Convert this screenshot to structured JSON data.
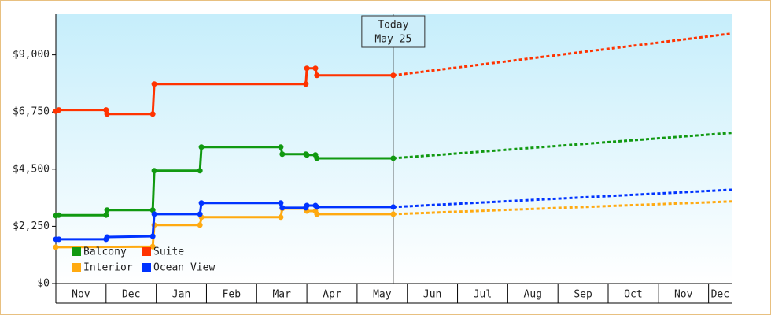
{
  "chart_data": {
    "type": "line",
    "xlim": [
      0,
      13.46
    ],
    "xticks": [
      {
        "value": 0,
        "label": "Nov"
      },
      {
        "value": 1,
        "label": "Dec"
      },
      {
        "value": 2,
        "label": "Jan"
      },
      {
        "value": 3,
        "label": "Feb"
      },
      {
        "value": 4,
        "label": "Mar"
      },
      {
        "value": 5,
        "label": "Apr"
      },
      {
        "value": 6,
        "label": "May"
      },
      {
        "value": 7,
        "label": "Jun"
      },
      {
        "value": 8,
        "label": "Jul"
      },
      {
        "value": 9,
        "label": "Aug"
      },
      {
        "value": 10,
        "label": "Sep"
      },
      {
        "value": 11,
        "label": "Oct"
      },
      {
        "value": 12,
        "label": "Nov"
      },
      {
        "value": 13,
        "label": "Dec"
      }
    ],
    "ylim": [
      0,
      10600
    ],
    "yticks": [
      {
        "value": 0,
        "label": "$0"
      },
      {
        "value": 2250,
        "label": "$2,250"
      },
      {
        "value": 4500,
        "label": "$4,500"
      },
      {
        "value": 6750,
        "label": "$6,750"
      },
      {
        "value": 9000,
        "label": "$9,000"
      }
    ],
    "annotation": {
      "x": 6.72,
      "text": [
        "Today",
        "May 25"
      ]
    },
    "series": [
      {
        "name": "Balcony",
        "color": "#119911",
        "x": [
          0,
          0.06,
          1.0,
          1.02,
          1.93,
          1.96,
          2.87,
          2.9,
          4.48,
          4.51,
          4.98,
          5.0,
          5.17,
          5.2,
          6.72
        ],
        "values": [
          2670,
          2690,
          2690,
          2890,
          2890,
          4440,
          4440,
          5370,
          5370,
          5090,
          5090,
          5060,
          5060,
          4930,
          4930
        ],
        "forecast": {
          "x": [
            6.72,
            13.46
          ],
          "values": [
            4930,
            5930
          ]
        }
      },
      {
        "name": "Suite",
        "color": "#ff3300",
        "x": [
          0,
          0.06,
          1.0,
          1.02,
          1.93,
          1.96,
          4.98,
          5.0,
          5.17,
          5.2,
          6.72
        ],
        "values": [
          6780,
          6830,
          6830,
          6670,
          6670,
          7850,
          7850,
          8470,
          8470,
          8190,
          8190
        ],
        "forecast": {
          "x": [
            6.72,
            13.46
          ],
          "values": [
            8190,
            9840
          ]
        }
      },
      {
        "name": "Interior",
        "color": "#ffaa11",
        "x": [
          0,
          1.93,
          1.96,
          2.87,
          2.9,
          4.48,
          4.51,
          4.98,
          5.0,
          5.17,
          5.2,
          6.72
        ],
        "values": [
          1430,
          1450,
          2300,
          2300,
          2610,
          2610,
          2950,
          2950,
          2850,
          2850,
          2730,
          2730
        ],
        "forecast": {
          "x": [
            6.72,
            13.46
          ],
          "values": [
            2730,
            3230
          ]
        }
      },
      {
        "name": "Ocean View",
        "color": "#0033ff",
        "x": [
          0,
          0.06,
          1.0,
          1.02,
          1.93,
          1.96,
          2.87,
          2.9,
          4.48,
          4.51,
          4.98,
          5.0,
          5.17,
          5.2,
          6.72
        ],
        "values": [
          1740,
          1740,
          1740,
          1830,
          1860,
          2730,
          2730,
          3170,
          3170,
          2980,
          2980,
          3070,
          3070,
          3010,
          3010
        ],
        "forecast": {
          "x": [
            6.72,
            13.46
          ],
          "values": [
            3010,
            3690
          ]
        }
      }
    ]
  }
}
